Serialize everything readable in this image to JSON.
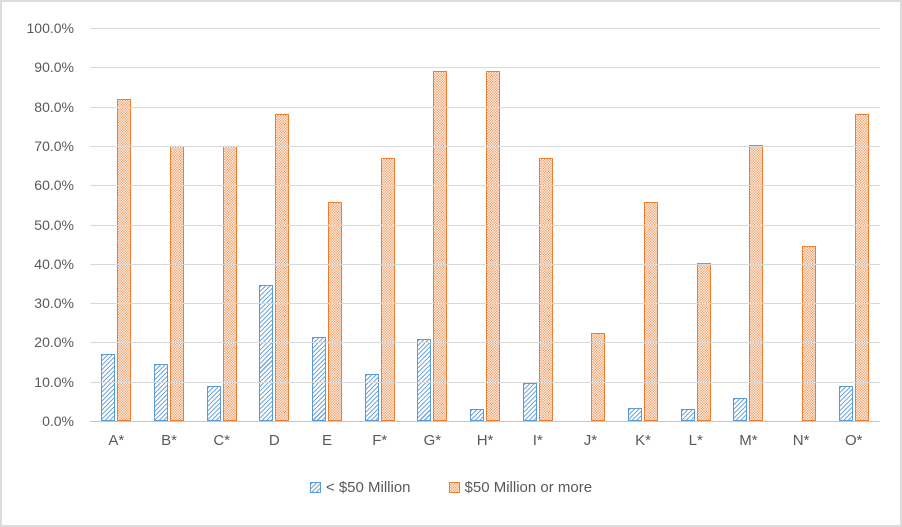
{
  "chart_data": {
    "type": "bar",
    "title": "",
    "xlabel": "",
    "ylabel": "",
    "ylim": [
      0,
      100
    ],
    "ytick_step": 10,
    "grid": true,
    "legend_position": "bottom-center",
    "yticks": [
      "100.0%",
      "90.0%",
      "80.0%",
      "70.0%",
      "60.0%",
      "50.0%",
      "40.0%",
      "30.0%",
      "20.0%",
      "10.0%",
      "0.0%"
    ],
    "categories": [
      "A*",
      "B*",
      "C*",
      "D",
      "E",
      "F*",
      "G*",
      "H*",
      "I*",
      "J*",
      "K*",
      "L*",
      "M*",
      "N*",
      "O*"
    ],
    "series": [
      {
        "name": "< $50 Million",
        "pattern": "diagonal-up-stripe",
        "border_color": "#5B9BD5",
        "fill_color": "#74A7DB",
        "values": [
          17.1,
          14.5,
          8.9,
          34.5,
          21.3,
          12.0,
          20.8,
          3.0,
          9.7,
          0.0,
          3.4,
          3.1,
          5.9,
          0.0,
          9.0
        ]
      },
      {
        "name": "$50 Million or more",
        "pattern": "checker",
        "border_color": "#ED7D31",
        "fill_color": "#ED9356",
        "values": [
          82.0,
          70.1,
          70.1,
          78.1,
          55.8,
          66.9,
          89.0,
          89.0,
          66.9,
          22.3,
          55.7,
          40.2,
          70.2,
          44.5,
          78.2
        ]
      }
    ]
  },
  "colors": {
    "gridline": "#D9D9D9",
    "axis_line": "#C6C6C6",
    "text": "#595959",
    "frame_border": "#DCDCDC",
    "background": "#FFFFFF"
  }
}
